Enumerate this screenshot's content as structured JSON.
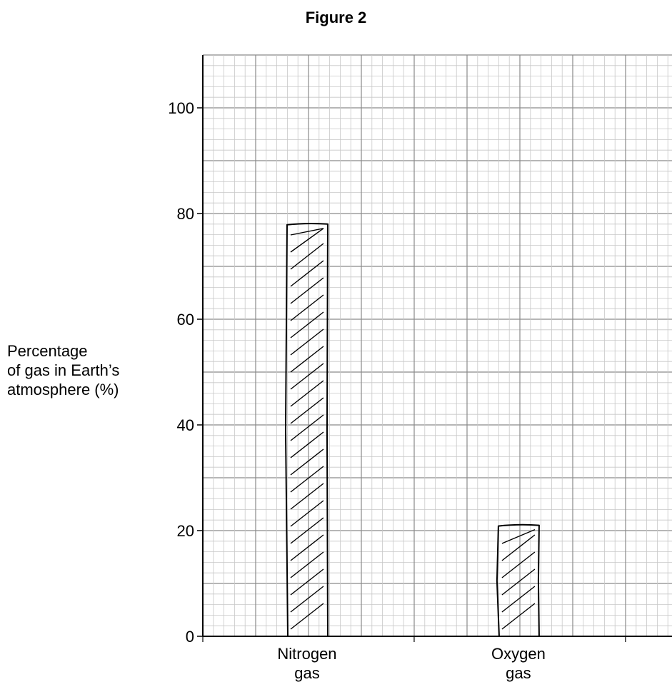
{
  "chart_data": {
    "type": "bar",
    "title": "Figure 2",
    "ylabel_lines": [
      "Percentage",
      "of gas in Earth’s",
      "atmosphere (%)"
    ],
    "xlabel": "",
    "categories": [
      {
        "lines": [
          "Nitrogen",
          "gas"
        ]
      },
      {
        "lines": [
          "Oxygen",
          "gas"
        ]
      }
    ],
    "values": [
      78,
      21
    ],
    "ylim": [
      0,
      110
    ],
    "yticks": [
      0,
      20,
      40,
      60,
      80,
      100
    ],
    "grid": true,
    "bar_style": "hand-drawn hatched"
  }
}
